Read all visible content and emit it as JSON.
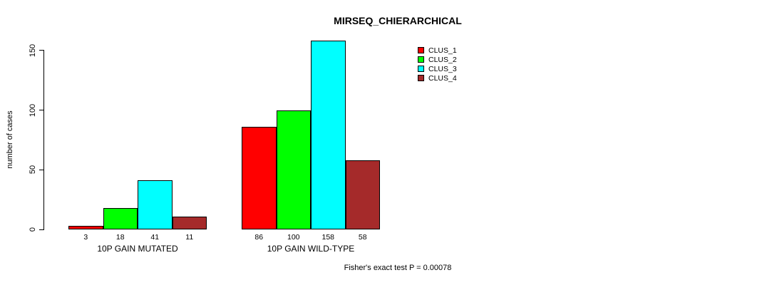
{
  "chart_data": {
    "type": "bar",
    "title": "MIRSEQ_CHIERARCHICAL",
    "xlabel": "",
    "ylabel": "number of cases",
    "yticks": [
      0,
      50,
      100,
      150
    ],
    "ylim": [
      0,
      158
    ],
    "grid": false,
    "legend_position": "top-right",
    "categories": [
      "10P GAIN MUTATED",
      "10P GAIN WILD-TYPE"
    ],
    "series": [
      {
        "name": "CLUS_1",
        "color": "#FF0000",
        "values": [
          3,
          86
        ]
      },
      {
        "name": "CLUS_2",
        "color": "#00FF00",
        "values": [
          18,
          100
        ]
      },
      {
        "name": "CLUS_3",
        "color": "#00FFFF",
        "values": [
          41,
          158
        ]
      },
      {
        "name": "CLUS_4",
        "color": "#A52A2A",
        "values": [
          11,
          58
        ]
      }
    ],
    "bar_value_labels": [
      [
        3,
        18,
        41,
        11
      ],
      [
        86,
        100,
        158,
        58
      ]
    ],
    "annotation": "Fisher's exact test P = 0.00078"
  }
}
